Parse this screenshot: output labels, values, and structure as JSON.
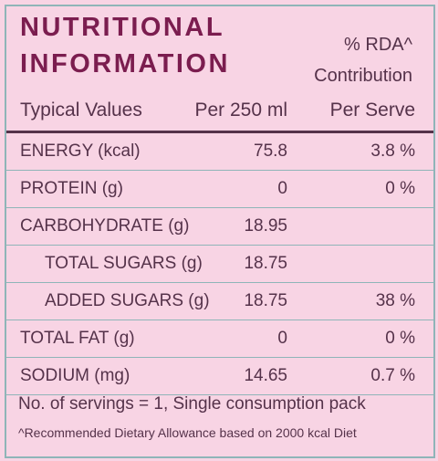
{
  "header": {
    "title_lines": [
      "NUTRITIONAL",
      "INFORMATION"
    ],
    "rda_lines": [
      "% RDA^",
      "Contribution"
    ]
  },
  "table": {
    "columns": [
      "Typical Values",
      "Per 250 ml",
      "Per Serve"
    ],
    "rows": [
      {
        "name": "ENERGY (kcal)",
        "per_250ml": "75.8",
        "per_serve": "3.8 %"
      },
      {
        "name": "PROTEIN (g)",
        "per_250ml": "0",
        "per_serve": "0 %"
      },
      {
        "name": "CARBOHYDRATE (g)",
        "per_250ml": "18.95",
        "sub_rows": [
          {
            "name": "TOTAL SUGARS (g)",
            "per_250ml": "18.75"
          },
          {
            "name": "ADDED SUGARS (g)",
            "per_250ml": "18.75",
            "per_serve": "38 %"
          }
        ]
      },
      {
        "name": "TOTAL FAT (g)",
        "per_250ml": "0",
        "per_serve": "0 %"
      },
      {
        "name": "SODIUM (mg)",
        "per_250ml": "14.65",
        "per_serve": "0.7 %"
      }
    ]
  },
  "footer": {
    "servings": "No. of servings = 1, Single consumption pack",
    "note": "^Recommended Dietary Allowance based on 2000 kcal Diet"
  }
}
